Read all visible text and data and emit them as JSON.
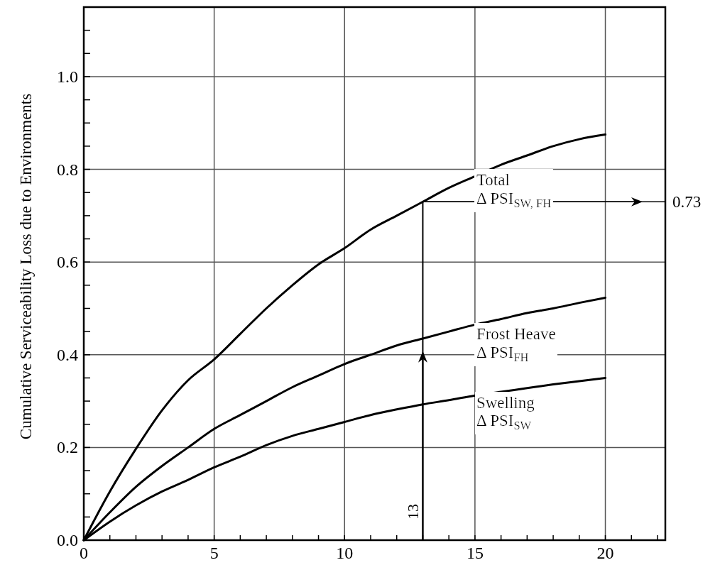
{
  "chart_data": {
    "type": "line",
    "ylabel": "Cumulative Serviceability Loss due to Environments",
    "x": [
      0,
      1,
      2,
      3,
      4,
      5,
      6,
      7,
      8,
      9,
      10,
      11,
      12,
      13,
      14,
      15,
      16,
      17,
      18,
      19,
      20
    ],
    "series": [
      {
        "name": "Total\nΔ PSI$_{SW, FH}$",
        "color": "#000000",
        "values": [
          0,
          0.105,
          0.197,
          0.28,
          0.345,
          0.39,
          0.445,
          0.5,
          0.55,
          0.595,
          0.63,
          0.67,
          0.7,
          0.73,
          0.76,
          0.785,
          0.81,
          0.83,
          0.85,
          0.865,
          0.875
        ]
      },
      {
        "name": "Frost Heave\nΔ PSI$_{FH}$",
        "color": "#000000",
        "values": [
          0,
          0.06,
          0.115,
          0.16,
          0.2,
          0.24,
          0.27,
          0.3,
          0.33,
          0.355,
          0.38,
          0.4,
          0.42,
          0.435,
          0.45,
          0.465,
          0.477,
          0.49,
          0.5,
          0.512,
          0.523
        ]
      },
      {
        "name": "Swelling\nΔ PSI$_{SW}$",
        "color": "#000000",
        "values": [
          0,
          0.04,
          0.075,
          0.105,
          0.13,
          0.157,
          0.18,
          0.205,
          0.225,
          0.24,
          0.255,
          0.27,
          0.282,
          0.293,
          0.302,
          0.312,
          0.32,
          0.328,
          0.336,
          0.343,
          0.35
        ]
      }
    ],
    "xlim": [
      0,
      22.3
    ],
    "ylim": [
      0,
      1.15
    ],
    "xticks": [
      0,
      {
        "value": 1,
        "label": null
      },
      {
        "value": 2,
        "label": null
      },
      {
        "value": 3,
        "label": null
      },
      {
        "value": 4,
        "label": null
      },
      5,
      {
        "value": 6,
        "label": null
      },
      {
        "value": 7,
        "label": null
      },
      {
        "value": 8,
        "label": null
      },
      {
        "value": 9,
        "label": null
      },
      10,
      {
        "value": 11,
        "label": null
      },
      {
        "value": 12,
        "label": null
      },
      {
        "value": 13,
        "label": null
      },
      {
        "value": 14,
        "label": null
      },
      15,
      {
        "value": 16,
        "label": null
      },
      {
        "value": 17,
        "label": null
      },
      {
        "value": 18,
        "label": null
      },
      {
        "value": 19,
        "label": null
      },
      20,
      {
        "value": 21,
        "label": null
      },
      {
        "value": 22,
        "label": null
      }
    ],
    "yticks": [
      {
        "value": 0,
        "label": "0.0"
      },
      {
        "value": 0.05,
        "label": null
      },
      {
        "value": 0.1,
        "label": null
      },
      {
        "value": 0.15,
        "label": null
      },
      {
        "value": 0.2,
        "label": "0.2"
      },
      {
        "value": 0.25,
        "label": null
      },
      {
        "value": 0.3,
        "label": null
      },
      {
        "value": 0.35,
        "label": null
      },
      {
        "value": 0.4,
        "label": "0.4"
      },
      {
        "value": 0.45,
        "label": null
      },
      {
        "value": 0.5,
        "label": null
      },
      {
        "value": 0.55,
        "label": null
      },
      {
        "value": 0.6,
        "label": "0.6"
      },
      {
        "value": 0.65,
        "label": null
      },
      {
        "value": 0.7,
        "label": null
      },
      {
        "value": 0.75,
        "label": null
      },
      {
        "value": 0.8,
        "label": "0.8"
      },
      {
        "value": 0.85,
        "label": null
      },
      {
        "value": 0.9,
        "label": null
      },
      {
        "value": 0.95,
        "label": null
      },
      {
        "value": 1,
        "label": "1.0"
      },
      {
        "value": 1.05,
        "label": null
      },
      {
        "value": 1.1,
        "label": null
      }
    ],
    "grid": true,
    "marker": "none",
    "line_style": "solid",
    "annotations": [
      "13",
      {
        "text": "0.73",
        "x": 13,
        "y": 0.73
      }
    ]
  }
}
